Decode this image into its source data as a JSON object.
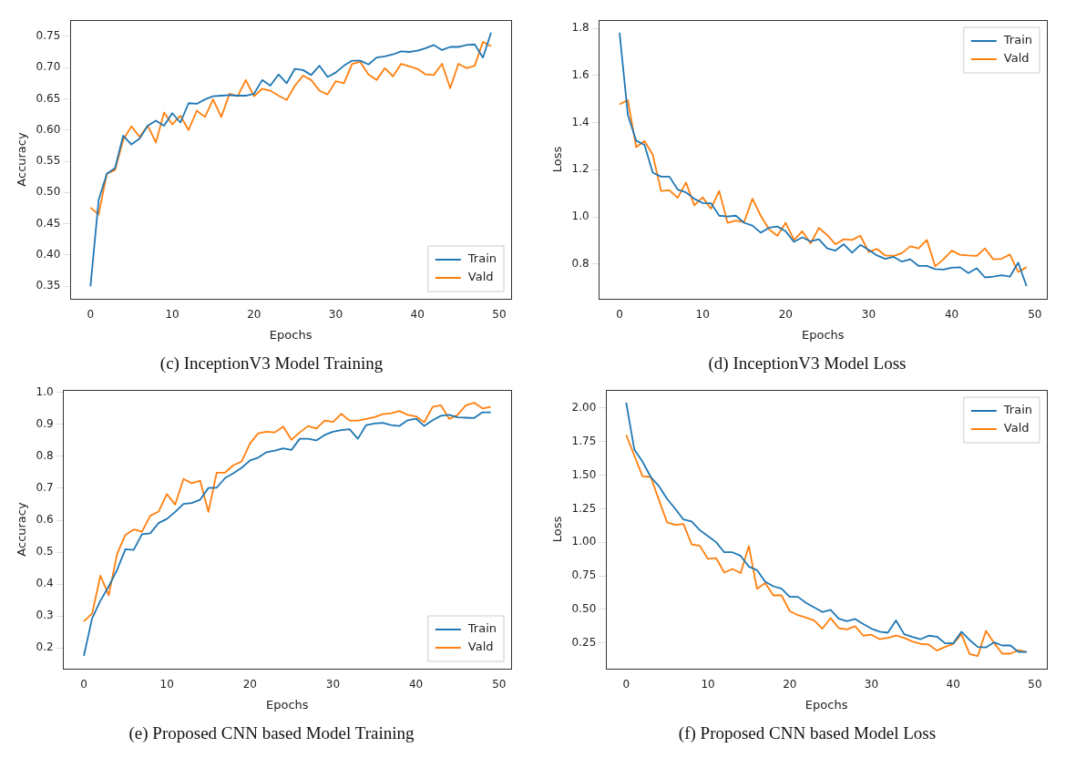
{
  "chart_data": [
    {
      "type": "line",
      "xlabel": "Epochs",
      "ylabel": "Accuracy",
      "annotations": [
        "(c) InceptionV3 Model Training"
      ],
      "legend": "bottom right",
      "grid": false,
      "marker": "none",
      "line_style": "solid",
      "x": [
        0,
        1,
        2,
        3,
        4,
        5,
        6,
        7,
        8,
        9,
        10,
        11,
        12,
        13,
        14,
        15,
        16,
        17,
        18,
        19,
        20,
        21,
        22,
        23,
        24,
        25,
        26,
        27,
        28,
        29,
        30,
        31,
        32,
        33,
        34,
        35,
        36,
        37,
        38,
        39,
        40,
        41,
        42,
        43,
        44,
        45,
        46,
        47,
        48,
        49
      ],
      "xlim": [
        -2.45,
        51.45
      ],
      "xticks": [
        0,
        10,
        20,
        30,
        40,
        50
      ],
      "ylim": [
        0.33,
        0.776
      ],
      "yticks": [
        {
          "value": 0.35,
          "label": "0.35"
        },
        {
          "value": 0.4,
          "label": "0.40"
        },
        {
          "value": 0.45,
          "label": "0.45"
        },
        {
          "value": 0.5,
          "label": "0.50"
        },
        {
          "value": 0.55,
          "label": "0.55"
        },
        {
          "value": 0.6,
          "label": "0.60"
        },
        {
          "value": 0.65,
          "label": "0.65"
        },
        {
          "value": 0.7,
          "label": "0.70"
        },
        {
          "value": 0.75,
          "label": "0.75"
        }
      ],
      "series": [
        {
          "name": "Train",
          "color": "#1f77b4",
          "values": [
            0.35,
            0.488,
            0.53,
            0.539,
            0.591,
            0.577,
            0.586,
            0.607,
            0.615,
            0.607,
            0.627,
            0.612,
            0.643,
            0.642,
            0.649,
            0.654,
            0.655,
            0.656,
            0.655,
            0.655,
            0.658,
            0.68,
            0.671,
            0.689,
            0.675,
            0.698,
            0.696,
            0.688,
            0.703,
            0.685,
            0.692,
            0.703,
            0.711,
            0.711,
            0.705,
            0.716,
            0.718,
            0.721,
            0.726,
            0.725,
            0.727,
            0.731,
            0.736,
            0.728,
            0.733,
            0.733,
            0.736,
            0.737,
            0.716,
            0.756
          ]
        },
        {
          "name": "Vald",
          "color": "#ff7f0e",
          "values": [
            0.476,
            0.465,
            0.53,
            0.536,
            0.584,
            0.606,
            0.589,
            0.607,
            0.58,
            0.628,
            0.609,
            0.623,
            0.6,
            0.631,
            0.621,
            0.649,
            0.621,
            0.658,
            0.654,
            0.68,
            0.654,
            0.666,
            0.663,
            0.655,
            0.648,
            0.671,
            0.687,
            0.68,
            0.663,
            0.657,
            0.678,
            0.675,
            0.706,
            0.709,
            0.689,
            0.68,
            0.699,
            0.686,
            0.706,
            0.702,
            0.698,
            0.689,
            0.688,
            0.706,
            0.667,
            0.706,
            0.699,
            0.703,
            0.741,
            0.734
          ]
        }
      ]
    },
    {
      "type": "line",
      "xlabel": "Epochs",
      "ylabel": "Loss",
      "annotations": [
        "(d) InceptionV3 Model Loss"
      ],
      "legend": "top right",
      "grid": false,
      "marker": "none",
      "line_style": "solid",
      "x": [
        0,
        1,
        2,
        3,
        4,
        5,
        6,
        7,
        8,
        9,
        10,
        11,
        12,
        13,
        14,
        15,
        16,
        17,
        18,
        19,
        20,
        21,
        22,
        23,
        24,
        25,
        26,
        27,
        28,
        29,
        30,
        31,
        32,
        33,
        34,
        35,
        36,
        37,
        38,
        39,
        40,
        41,
        42,
        43,
        44,
        45,
        46,
        47,
        48,
        49
      ],
      "xlim": [
        -2.45,
        51.45
      ],
      "xticks": [
        0,
        10,
        20,
        30,
        40,
        50
      ],
      "ylim": [
        0.652,
        1.836
      ],
      "yticks": [
        {
          "value": 0.8,
          "label": "0.8"
        },
        {
          "value": 1.0,
          "label": "1.0"
        },
        {
          "value": 1.2,
          "label": "1.2"
        },
        {
          "value": 1.4,
          "label": "1.4"
        },
        {
          "value": 1.6,
          "label": "1.6"
        },
        {
          "value": 1.8,
          "label": "1.8"
        }
      ],
      "series": [
        {
          "name": "Train",
          "color": "#1f77b4",
          "values": [
            1.782,
            1.433,
            1.324,
            1.306,
            1.188,
            1.171,
            1.171,
            1.116,
            1.104,
            1.077,
            1.059,
            1.058,
            1.005,
            1.002,
            1.005,
            0.975,
            0.963,
            0.933,
            0.954,
            0.959,
            0.939,
            0.894,
            0.913,
            0.896,
            0.905,
            0.866,
            0.857,
            0.884,
            0.848,
            0.881,
            0.86,
            0.836,
            0.822,
            0.83,
            0.81,
            0.82,
            0.792,
            0.792,
            0.778,
            0.776,
            0.784,
            0.786,
            0.761,
            0.782,
            0.743,
            0.746,
            0.752,
            0.746,
            0.806,
            0.706
          ]
        },
        {
          "name": "Vald",
          "color": "#ff7f0e",
          "values": [
            1.478,
            1.496,
            1.296,
            1.322,
            1.264,
            1.11,
            1.113,
            1.081,
            1.146,
            1.049,
            1.083,
            1.035,
            1.11,
            0.975,
            0.984,
            0.978,
            1.077,
            1.005,
            0.947,
            0.92,
            0.975,
            0.902,
            0.939,
            0.887,
            0.953,
            0.923,
            0.884,
            0.905,
            0.902,
            0.92,
            0.851,
            0.864,
            0.836,
            0.834,
            0.846,
            0.875,
            0.866,
            0.902,
            0.79,
            0.82,
            0.857,
            0.839,
            0.836,
            0.834,
            0.866,
            0.82,
            0.822,
            0.84,
            0.766,
            0.786
          ]
        }
      ]
    },
    {
      "type": "line",
      "xlabel": "Epochs",
      "ylabel": "Accuracy",
      "annotations": [
        "(e) Proposed CNN based Model Training"
      ],
      "legend": "bottom right",
      "grid": false,
      "marker": "none",
      "line_style": "solid",
      "x": [
        0,
        1,
        2,
        3,
        4,
        5,
        6,
        7,
        8,
        9,
        10,
        11,
        12,
        13,
        14,
        15,
        16,
        17,
        18,
        19,
        20,
        21,
        22,
        23,
        24,
        25,
        26,
        27,
        28,
        29,
        30,
        31,
        32,
        33,
        34,
        35,
        36,
        37,
        38,
        39,
        40,
        41,
        42,
        43,
        44,
        45,
        46,
        47,
        48,
        49
      ],
      "xlim": [
        -2.45,
        51.45
      ],
      "xticks": [
        0,
        10,
        20,
        30,
        40,
        50
      ],
      "ylim": [
        0.135,
        1.008
      ],
      "yticks": [
        {
          "value": 0.2,
          "label": "0.2"
        },
        {
          "value": 0.3,
          "label": "0.3"
        },
        {
          "value": 0.4,
          "label": "0.4"
        },
        {
          "value": 0.5,
          "label": "0.5"
        },
        {
          "value": 0.6,
          "label": "0.6"
        },
        {
          "value": 0.7,
          "label": "0.7"
        },
        {
          "value": 0.8,
          "label": "0.8"
        },
        {
          "value": 0.9,
          "label": "0.9"
        },
        {
          "value": 1.0,
          "label": "1.0"
        }
      ],
      "series": [
        {
          "name": "Train",
          "color": "#1f77b4",
          "values": [
            0.175,
            0.293,
            0.348,
            0.393,
            0.444,
            0.509,
            0.507,
            0.556,
            0.559,
            0.591,
            0.604,
            0.626,
            0.651,
            0.654,
            0.664,
            0.701,
            0.702,
            0.732,
            0.747,
            0.764,
            0.787,
            0.796,
            0.813,
            0.818,
            0.825,
            0.82,
            0.855,
            0.855,
            0.85,
            0.867,
            0.877,
            0.882,
            0.885,
            0.855,
            0.898,
            0.903,
            0.905,
            0.898,
            0.895,
            0.913,
            0.918,
            0.895,
            0.913,
            0.927,
            0.93,
            0.922,
            0.921,
            0.92,
            0.938,
            0.938
          ]
        },
        {
          "name": "Vald",
          "color": "#ff7f0e",
          "values": [
            0.283,
            0.308,
            0.426,
            0.365,
            0.494,
            0.554,
            0.571,
            0.564,
            0.614,
            0.627,
            0.682,
            0.649,
            0.729,
            0.716,
            0.724,
            0.626,
            0.749,
            0.749,
            0.772,
            0.784,
            0.84,
            0.872,
            0.877,
            0.875,
            0.893,
            0.852,
            0.875,
            0.895,
            0.887,
            0.912,
            0.908,
            0.933,
            0.912,
            0.912,
            0.917,
            0.923,
            0.932,
            0.935,
            0.942,
            0.93,
            0.925,
            0.907,
            0.955,
            0.96,
            0.917,
            0.93,
            0.96,
            0.968,
            0.95,
            0.955
          ]
        }
      ]
    },
    {
      "type": "line",
      "xlabel": "Epochs",
      "ylabel": "Loss",
      "annotations": [
        "(f) Proposed CNN based Model Loss"
      ],
      "legend": "top right",
      "grid": false,
      "marker": "none",
      "line_style": "solid",
      "x": [
        0,
        1,
        2,
        3,
        4,
        5,
        6,
        7,
        8,
        9,
        10,
        11,
        12,
        13,
        14,
        15,
        16,
        17,
        18,
        19,
        20,
        21,
        22,
        23,
        24,
        25,
        26,
        27,
        28,
        29,
        30,
        31,
        32,
        33,
        34,
        35,
        36,
        37,
        38,
        39,
        40,
        41,
        42,
        43,
        44,
        45,
        46,
        47,
        48,
        49
      ],
      "xlim": [
        -2.45,
        51.45
      ],
      "xticks": [
        0,
        10,
        20,
        30,
        40,
        50
      ],
      "ylim": [
        0.059,
        2.135
      ],
      "yticks": [
        {
          "value": 0.25,
          "label": "0.25"
        },
        {
          "value": 0.5,
          "label": "0.50"
        },
        {
          "value": 0.75,
          "label": "0.75"
        },
        {
          "value": 1.0,
          "label": "1.00"
        },
        {
          "value": 1.25,
          "label": "1.25"
        },
        {
          "value": 1.5,
          "label": "1.50"
        },
        {
          "value": 1.75,
          "label": "1.75"
        },
        {
          "value": 2.0,
          "label": "2.00"
        }
      ],
      "series": [
        {
          "name": "Train",
          "color": "#1f77b4",
          "values": [
            2.041,
            1.69,
            1.6,
            1.487,
            1.419,
            1.324,
            1.25,
            1.17,
            1.155,
            1.091,
            1.046,
            1.001,
            0.926,
            0.926,
            0.899,
            0.82,
            0.793,
            0.707,
            0.673,
            0.655,
            0.594,
            0.594,
            0.549,
            0.515,
            0.481,
            0.497,
            0.431,
            0.413,
            0.429,
            0.391,
            0.357,
            0.334,
            0.327,
            0.418,
            0.316,
            0.296,
            0.278,
            0.305,
            0.298,
            0.248,
            0.248,
            0.334,
            0.273,
            0.221,
            0.217,
            0.255,
            0.232,
            0.232,
            0.183,
            0.183
          ]
        },
        {
          "name": "Vald",
          "color": "#ff7f0e",
          "values": [
            1.799,
            1.645,
            1.491,
            1.487,
            1.317,
            1.148,
            1.13,
            1.137,
            0.985,
            0.974,
            0.877,
            0.883,
            0.775,
            0.802,
            0.771,
            0.972,
            0.655,
            0.696,
            0.605,
            0.605,
            0.488,
            0.458,
            0.44,
            0.418,
            0.357,
            0.436,
            0.361,
            0.352,
            0.375,
            0.305,
            0.312,
            0.278,
            0.289,
            0.305,
            0.289,
            0.262,
            0.244,
            0.239,
            0.194,
            0.221,
            0.244,
            0.316,
            0.169,
            0.153,
            0.341,
            0.25,
            0.171,
            0.171,
            0.198,
            0.183
          ]
        }
      ]
    }
  ]
}
